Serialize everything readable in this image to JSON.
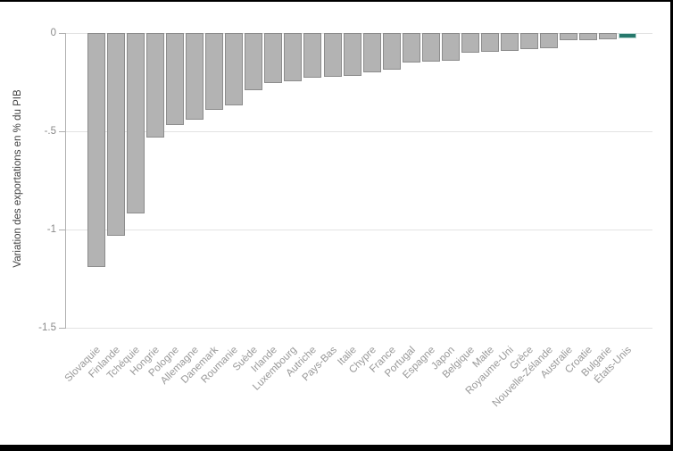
{
  "figure": {
    "background_color": "#ffffff",
    "frame_color": "#000000"
  },
  "chart_data": {
    "type": "bar",
    "title": "",
    "xlabel": "",
    "ylabel": "Variation des exportations en % du PIB",
    "ylim": [
      -1.5,
      0
    ],
    "grid": true,
    "legend_position": "none",
    "y_ticks": [
      {
        "label": "0",
        "value": 0
      },
      {
        "label": "-.5",
        "value": -0.5
      },
      {
        "label": "-1",
        "value": -1
      },
      {
        "label": "-1.5",
        "value": -1.5
      }
    ],
    "categories": [
      "Slovaquie",
      "Finlande",
      "Tchéquie",
      "Hongrie",
      "Pologne",
      "Allemagne",
      "Danemark",
      "Roumanie",
      "Suède",
      "Irlande",
      "Luxembourg",
      "Autriche",
      "Pays-Bas",
      "Italie",
      "Chypre",
      "France",
      "Portugal",
      "Espagne",
      "Japon",
      "Belgique",
      "Malte",
      "Royaume-Uni",
      "Grèce",
      "Nouvelle-Zélande",
      "Australie",
      "Croatie",
      "Bulgarie",
      "États-Unis"
    ],
    "values": [
      -1.19,
      -1.03,
      -0.92,
      -0.53,
      -0.47,
      -0.44,
      -0.39,
      -0.37,
      -0.29,
      -0.255,
      -0.245,
      -0.225,
      -0.222,
      -0.22,
      -0.2,
      -0.185,
      -0.15,
      -0.147,
      -0.14,
      -0.098,
      -0.094,
      -0.09,
      -0.08,
      -0.075,
      -0.038,
      -0.035,
      -0.033,
      -0.026
    ],
    "highlight_category": "États-Unis",
    "colors": {
      "bar_fill": "#b3b3b3",
      "bar_border": "#8c8c8c",
      "highlight_fill": "#26786c",
      "highlight_border": "#bcd9d4",
      "gridline": "#e3e3e3",
      "axis_line": "#b0b0b0",
      "tick_label": "#8a8a8a",
      "category_label": "#989898",
      "axis_title": "#3f3f3f"
    }
  }
}
